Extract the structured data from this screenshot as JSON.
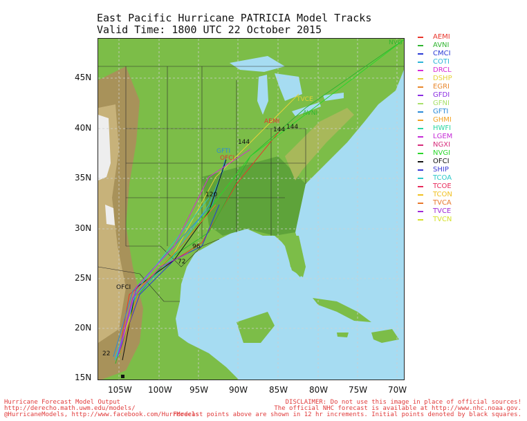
{
  "title": {
    "line1": "East Pacific Hurricane PATRICIA Model Tracks",
    "line2": "Valid Time: 1800 UTC 22 October 2015"
  },
  "axes": {
    "lat": [
      "45N",
      "40N",
      "35N",
      "30N",
      "25N",
      "20N",
      "15N"
    ],
    "lon": [
      "105W",
      "100W",
      "95W",
      "90W",
      "85W",
      "80W",
      "75W",
      "70W"
    ]
  },
  "legend": [
    {
      "name": "AEMI",
      "color": "#e8352b"
    },
    {
      "name": "AVNI",
      "color": "#2fb52f"
    },
    {
      "name": "CMCI",
      "color": "#2a3ad6"
    },
    {
      "name": "COTI",
      "color": "#2ab4d8"
    },
    {
      "name": "DRCL",
      "color": "#d62ad6"
    },
    {
      "name": "DSHP",
      "color": "#e6d23a"
    },
    {
      "name": "EGRI",
      "color": "#e8872b"
    },
    {
      "name": "GFDI",
      "color": "#8a2be2"
    },
    {
      "name": "GFNI",
      "color": "#a8e06a"
    },
    {
      "name": "GFTI",
      "color": "#2a8ad8"
    },
    {
      "name": "GHMI",
      "color": "#f0a020"
    },
    {
      "name": "HWFI",
      "color": "#2ad6a0"
    },
    {
      "name": "LGEM",
      "color": "#c42ad6"
    },
    {
      "name": "NGXI",
      "color": "#d62a7a"
    },
    {
      "name": "NVGI",
      "color": "#2ad62a"
    },
    {
      "name": "OFCI",
      "color": "#111111"
    },
    {
      "name": "SHIP",
      "color": "#3a3ad6"
    },
    {
      "name": "TCOA",
      "color": "#2ac8c8"
    },
    {
      "name": "TCOE",
      "color": "#e82a5a"
    },
    {
      "name": "TCON",
      "color": "#f0c020"
    },
    {
      "name": "TVCA",
      "color": "#e8772b"
    },
    {
      "name": "TVCE",
      "color": "#a02ad6"
    },
    {
      "name": "TVCN",
      "color": "#d6e02a"
    }
  ],
  "map_labels": {
    "aemi": "AEMI",
    "avni": "AVNI",
    "tvce": "TVCE",
    "gfti": "GFTI",
    "ofci": "OFCI",
    "nvg": "NVG",
    "h144a": "144",
    "h144b": "144",
    "h144c": "144",
    "h96": "96",
    "h72": "72",
    "h120": "120",
    "ofci_start": "OFCI",
    "h22": "22"
  },
  "footer": {
    "left1": "Hurricane Forecast Model Output",
    "left2": "http://derecho.math.uwm.edu/models/",
    "left3": "@HurricaneModels, http://www.facebook.com/HurrModels",
    "right1": "DISCLAIMER: Do not use this image in place of official sources!",
    "right2": "The official NHC forecast is available at http://www.nhc.noaa.gov.",
    "right3": "Forecast points above are shown in 12 hr increments. Initial points denoted by black squares."
  }
}
